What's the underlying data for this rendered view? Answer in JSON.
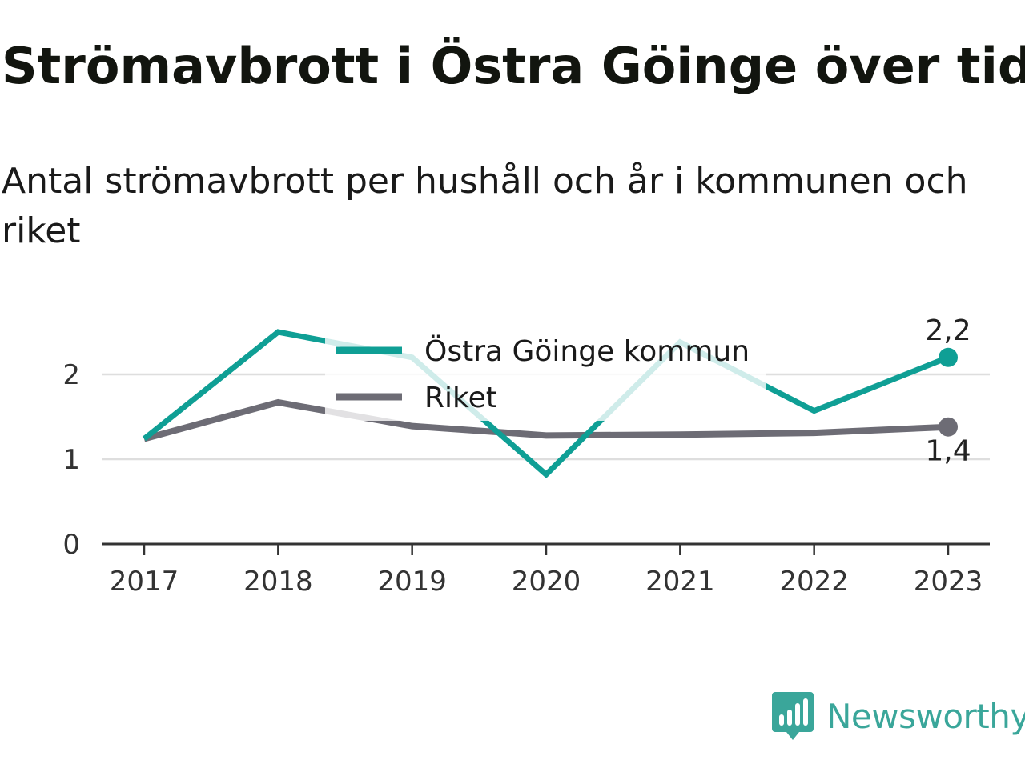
{
  "title": "Strömavbrott i Östra Göinge över tid",
  "subtitle": "Antal strömavbrott per hushåll och år i kommunen och riket",
  "brand": {
    "name": "Newsworthy",
    "icon": "bar-chart-speech-bubble-icon",
    "color": "#3aa69a"
  },
  "chart_data": {
    "type": "line",
    "x": [
      "2017",
      "2018",
      "2019",
      "2020",
      "2021",
      "2022",
      "2023"
    ],
    "yticks": [
      "0",
      "1",
      "2"
    ],
    "ylim": [
      0,
      2.5
    ],
    "grid": true,
    "legend_position": "top-center",
    "series": [
      {
        "name": "Östra Göinge kommun",
        "color": "#0f9f95",
        "values": [
          1.24,
          2.5,
          2.2,
          0.82,
          2.38,
          1.57,
          2.2
        ],
        "end_label": "2,2"
      },
      {
        "name": "Riket",
        "color": "#6d6c75",
        "values": [
          1.24,
          1.67,
          1.39,
          1.28,
          1.29,
          1.31,
          1.38
        ],
        "end_label": "1,4"
      }
    ]
  }
}
